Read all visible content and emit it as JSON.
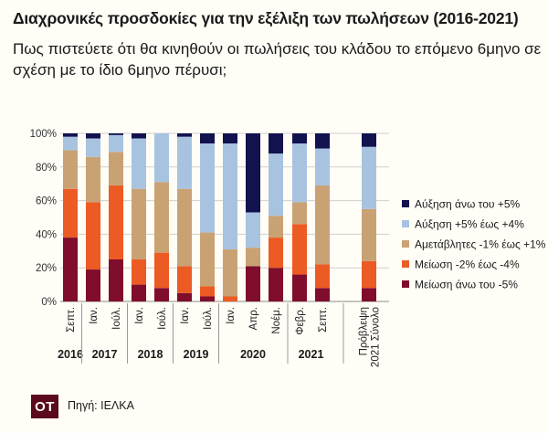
{
  "header": {
    "title": "Διαχρονικές προσδοκίες για την εξέλιξη των πωλήσεων (2016-2021)",
    "subtitle": "Πως πιστεύετε ότι θα κινηθούν οι πωλήσεις του κλάδου το επόμενο 6μηνο σε σχέση με το ίδιο 6μηνο πέρυσι;"
  },
  "footer": {
    "logo_text": "ΟΤ",
    "source": "Πηγή: ΙΕΛΚΑ"
  },
  "colors": {
    "inc_big": "#12124f",
    "inc_small": "#a8c3e0",
    "stable": "#c9a274",
    "dec_small": "#ec5b24",
    "dec_big": "#7f0d2b"
  },
  "chart_data": {
    "type": "bar",
    "stacked": true,
    "ylim": [
      0,
      100
    ],
    "yticks": [
      "0%",
      "20%",
      "40%",
      "60%",
      "80%",
      "100%"
    ],
    "categories": [
      "Σεπτ.",
      "Ιαν.",
      "Ιούλ.",
      "Ιαν.",
      "Ιούλ.",
      "Ιαν.",
      "Ιούλ.",
      "Ιαν.",
      "Απρ.",
      "Νοέμ.",
      "Φεβρ.",
      "Σεπτ.",
      "Πρόβλεψη 2021 Σύνολο"
    ],
    "year_labels": [
      {
        "label": "2016",
        "from": 0,
        "to": 0
      },
      {
        "label": "2017",
        "from": 1,
        "to": 2
      },
      {
        "label": "2018",
        "from": 3,
        "to": 4
      },
      {
        "label": "2019",
        "from": 5,
        "to": 6
      },
      {
        "label": "2020",
        "from": 7,
        "to": 9
      },
      {
        "label": "2021",
        "from": 10,
        "to": 11
      }
    ],
    "series": [
      {
        "name": "Μείωση άνω του -5%",
        "color_key": "dec_big",
        "values": [
          38,
          19,
          25,
          10,
          8,
          5,
          3,
          0,
          21,
          20,
          16,
          8,
          8
        ]
      },
      {
        "name": "Μείωση -2% έως -4%",
        "color_key": "dec_small",
        "values": [
          29,
          40,
          44,
          15,
          21,
          16,
          6,
          3,
          0,
          18,
          30,
          14,
          16
        ]
      },
      {
        "name": "Αμετάβλητες -1% έως +1%",
        "color_key": "stable",
        "values": [
          23,
          27,
          20,
          42,
          42,
          46,
          32,
          28,
          11,
          13,
          13,
          47,
          31
        ]
      },
      {
        "name": "Αύξηση +5% έως +4%",
        "color_key": "inc_small",
        "values": [
          8,
          11,
          10,
          30,
          29,
          31,
          53,
          63,
          21,
          37,
          35,
          22,
          37
        ]
      },
      {
        "name": "Αύξηση άνω του +5%",
        "color_key": "inc_big",
        "values": [
          2,
          3,
          1,
          3,
          0,
          2,
          6,
          6,
          47,
          12,
          6,
          9,
          8
        ]
      }
    ],
    "legend_position": "right",
    "grid": true
  }
}
